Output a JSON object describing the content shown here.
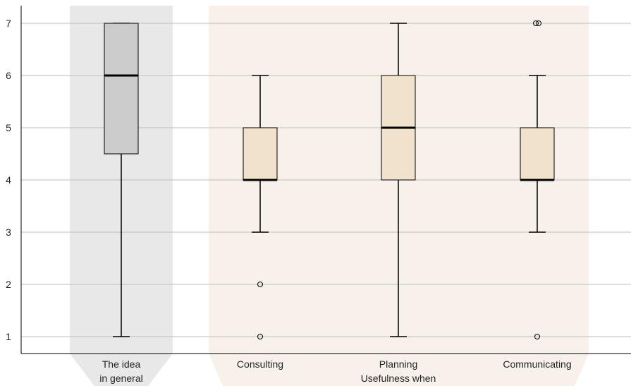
{
  "chart_data": {
    "type": "box",
    "ylim": [
      0.6,
      7.35
    ],
    "yticks": [
      1,
      2,
      3,
      4,
      5,
      6,
      7
    ],
    "grid": true,
    "categories": [
      "The idea\nin general",
      "Consulting",
      "Planning",
      "Communicating"
    ],
    "group_label": "Usefulness when",
    "boxes": [
      {
        "category": "The idea in general",
        "min": 1,
        "q1": 4.5,
        "median": 6,
        "q3": 7,
        "max": 7,
        "outliers": []
      },
      {
        "category": "Consulting",
        "min": 3,
        "q1": 4,
        "median": 4,
        "q3": 5,
        "max": 6,
        "outliers": [
          2,
          1
        ]
      },
      {
        "category": "Planning",
        "min": 1,
        "q1": 4,
        "median": 5,
        "q3": 6,
        "max": 7,
        "outliers": []
      },
      {
        "category": "Communicating",
        "min": 3,
        "q1": 4,
        "median": 4,
        "q3": 5,
        "max": 6,
        "outliers": [
          7,
          7,
          1
        ]
      }
    ],
    "colors": {
      "panel_general": "#e8e8e8",
      "panel_usefulness": "#f8f1ea",
      "box_general": "#cccccc",
      "box_usefulness": "#f1e2cc",
      "grid": "#bbbbbb",
      "stroke": "#000000"
    }
  }
}
